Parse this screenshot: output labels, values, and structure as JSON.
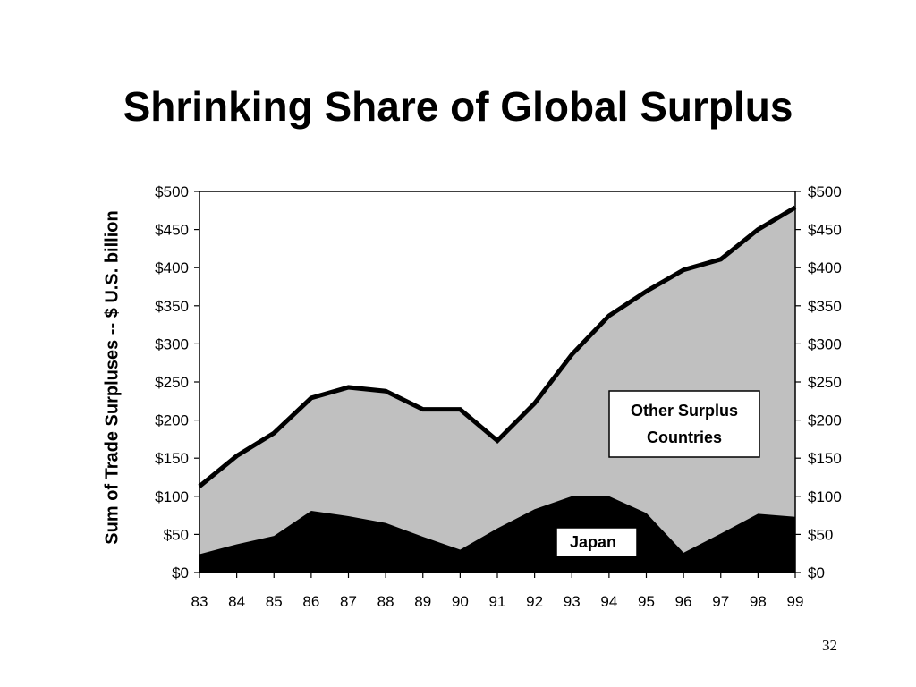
{
  "slide": {
    "title": "Shrinking Share of Global Surplus",
    "page_number": "32"
  },
  "chart_data": {
    "type": "area",
    "stacked": true,
    "title": "Shrinking Share of Global Surplus",
    "ylabel": "Sum  of Trade Surpluses -- $ U.S. billion",
    "xlabel": "",
    "x": [
      "83",
      "84",
      "85",
      "86",
      "87",
      "88",
      "89",
      "90",
      "91",
      "92",
      "93",
      "94",
      "95",
      "96",
      "97",
      "98",
      "99"
    ],
    "ylim": [
      0,
      500
    ],
    "yticks": [
      "$0",
      "$50",
      "$100",
      "$150",
      "$200",
      "$250",
      "$300",
      "$350",
      "$400",
      "$450",
      "$500"
    ],
    "y_tick_values": [
      0,
      50,
      100,
      150,
      200,
      250,
      300,
      350,
      400,
      450,
      500
    ],
    "secondary_y_axis": true,
    "series": [
      {
        "name": "Japan",
        "values": [
          24,
          37,
          48,
          81,
          74,
          65,
          47,
          30,
          58,
          83,
          100,
          100,
          78,
          26,
          51,
          77,
          73
        ],
        "color": "#000000"
      },
      {
        "name": "Other Surplus Countries",
        "values": [
          89,
          116,
          135,
          148,
          169,
          173,
          167,
          184,
          115,
          139,
          186,
          237,
          291,
          371,
          360,
          373,
          406
        ],
        "color": "#c0c0c0"
      }
    ],
    "total_line": {
      "values": [
        113,
        153,
        183,
        229,
        243,
        238,
        214,
        214,
        173,
        222,
        286,
        337,
        369,
        397,
        411,
        450,
        479
      ],
      "color": "#000000"
    },
    "labels": {
      "japan": "Japan",
      "other_line1": "Other Surplus",
      "other_line2": "Countries"
    }
  }
}
